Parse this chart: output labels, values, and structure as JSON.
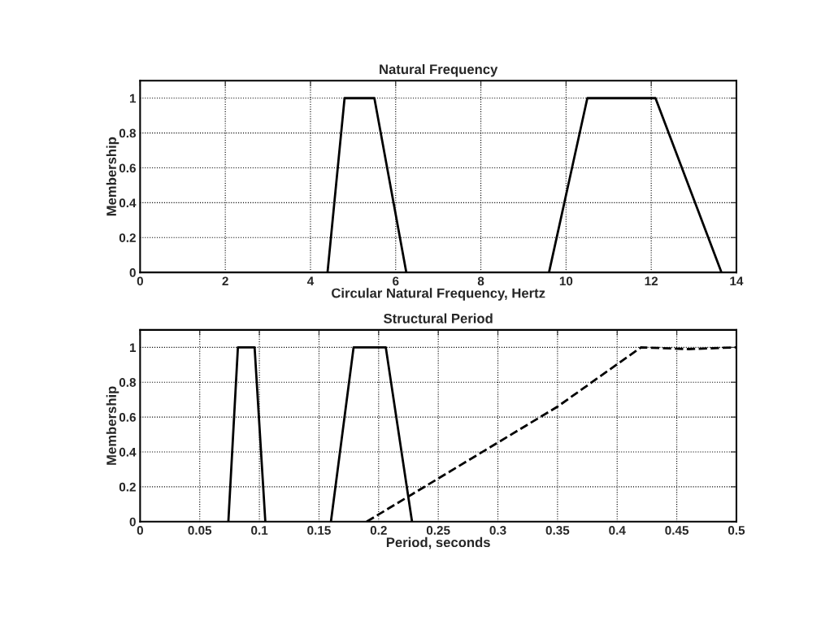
{
  "chart_data": [
    {
      "type": "line",
      "title": "Natural Frequency",
      "xlabel": "Circular Natural Frequency, Hertz",
      "ylabel": "Membership",
      "xlim": [
        0,
        14
      ],
      "xticks": [
        0,
        2,
        4,
        6,
        8,
        10,
        12,
        14
      ],
      "ylim": [
        0,
        1.1
      ],
      "yticks": [
        0,
        0.2,
        0.4,
        0.6,
        0.8,
        1
      ],
      "grid": true,
      "legend": false,
      "series": [
        {
          "color": "#000000",
          "x": [
            4.4,
            4.8,
            5.5,
            6.25
          ],
          "values": [
            0,
            1,
            1,
            0
          ],
          "line_style": "solid"
        },
        {
          "color": "#000000",
          "x": [
            9.6,
            10.5,
            12.1,
            13.65
          ],
          "values": [
            0,
            1,
            1,
            0
          ],
          "line_style": "solid"
        }
      ]
    },
    {
      "type": "line",
      "title": "Structural Period",
      "xlabel": "Period, seconds",
      "ylabel": "Membership",
      "xlim": [
        0,
        0.5
      ],
      "xticks": [
        0,
        0.05,
        0.1,
        0.15,
        0.2,
        0.25,
        0.3,
        0.35,
        0.4,
        0.45,
        0.5
      ],
      "ylim": [
        0,
        1.1
      ],
      "yticks": [
        0,
        0.2,
        0.4,
        0.6,
        0.8,
        1
      ],
      "grid": true,
      "legend": false,
      "series": [
        {
          "color": "#000000",
          "x": [
            0.074,
            0.082,
            0.096,
            0.105
          ],
          "values": [
            0,
            1,
            1,
            0
          ],
          "line_style": "solid"
        },
        {
          "color": "#000000",
          "x": [
            0.16,
            0.179,
            0.206,
            0.228
          ],
          "values": [
            0,
            1,
            1,
            0
          ],
          "line_style": "solid"
        },
        {
          "color": "#000000",
          "x": [
            0.19,
            0.35,
            0.42,
            0.46,
            0.5
          ],
          "values": [
            0,
            0.66,
            1,
            0.99,
            1
          ],
          "line_style": "dashed"
        }
      ]
    }
  ]
}
